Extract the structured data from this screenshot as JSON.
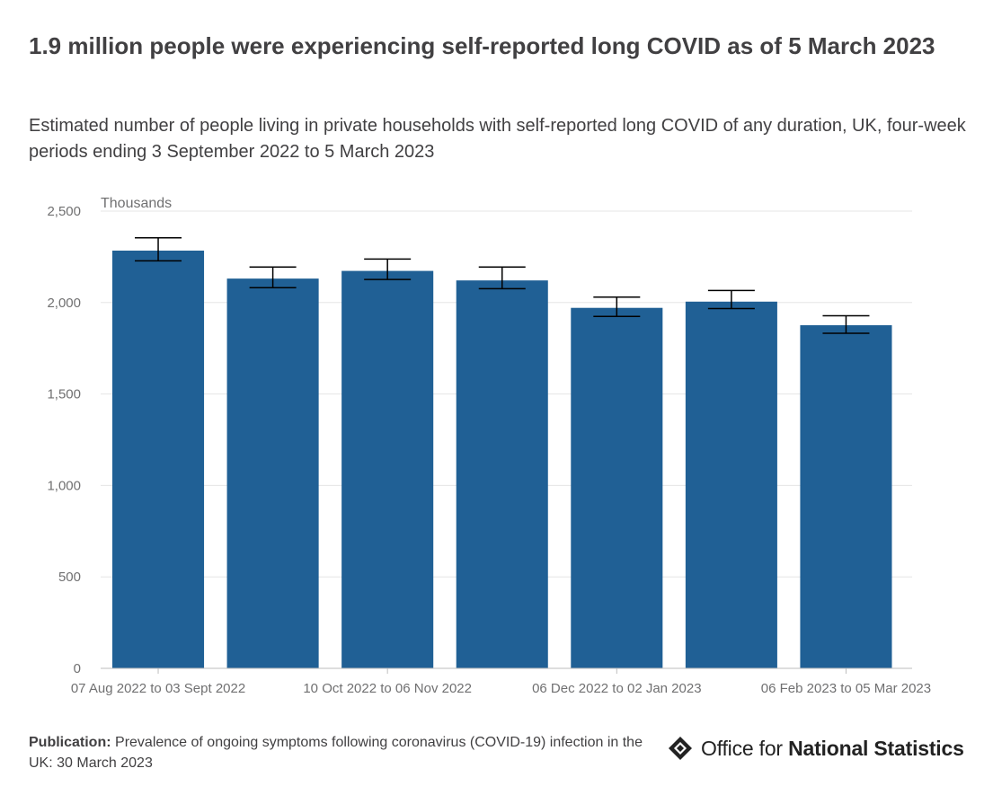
{
  "title": "1.9 million people were experiencing self-reported long COVID as of 5 March 2023",
  "subtitle": "Estimated number of people living in private households with self-reported long COVID of any duration, UK, four-week periods ending 3 September 2022 to 5 March 2023",
  "footer": {
    "source_label": "Publication:",
    "source_text": "Prevalence of ongoing symptoms following coronavirus (COVID-19) infection in the UK: 30 March 2023"
  },
  "logo": {
    "text_regular": "Office for",
    "text_bold": "National Statistics"
  },
  "colors": {
    "bar": "#206095",
    "error_bar": "#000000",
    "grid": "#e5e5e5",
    "axis": "#bebebe",
    "tick_text": "#707071"
  },
  "chart_data": {
    "type": "bar",
    "title": "1.9 million people were experiencing self-reported long COVID as of 5 March 2023",
    "subtitle": "Estimated number of people living in private households with self-reported long COVID of any duration, UK, four-week periods ending 3 September 2022 to 5 March 2023",
    "y_unit_label": "Thousands",
    "categories": [
      "07 Aug 2022 to 03 Sept 2022",
      "",
      "10 Oct 2022 to 06 Nov 2022",
      "",
      "06 Dec 2022 to 02 Jan 2023",
      "",
      "06 Feb 2023 to 05 Mar 2023"
    ],
    "series": [
      {
        "values": [
          2284,
          2131,
          2173,
          2121,
          1971,
          2005,
          1876
        ],
        "lower": [
          2228,
          2081,
          2126,
          2076,
          1924,
          1967,
          1832
        ],
        "upper": [
          2354,
          2194,
          2238,
          2194,
          2030,
          2066,
          1928
        ]
      }
    ],
    "ylim": [
      0,
      2500
    ],
    "yticks": [
      0,
      500,
      1000,
      1500,
      2000,
      2500
    ],
    "ytick_labels": [
      "0",
      "500",
      "1,000",
      "1,500",
      "2,000",
      "2,500"
    ],
    "grid": true,
    "legend": "none"
  }
}
